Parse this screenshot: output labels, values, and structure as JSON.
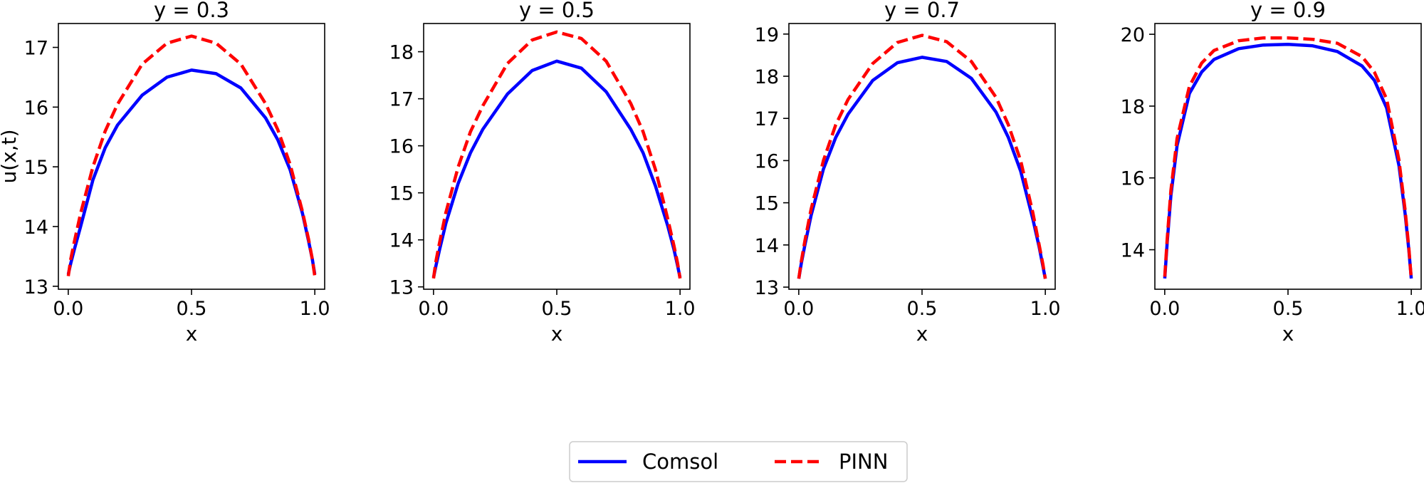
{
  "colors": {
    "comsol": "#0000ff",
    "pinn": "#ff0000",
    "axes": "#000000",
    "background": "#ffffff"
  },
  "legend": {
    "placement": "bottom-center",
    "entries": [
      {
        "name": "Comsol",
        "color": "#0000ff",
        "style": "solid"
      },
      {
        "name": "PINN",
        "color": "#ff0000",
        "style": "dashed"
      }
    ]
  },
  "chart_data": [
    {
      "type": "line",
      "title": "y = 0.3",
      "xlabel": "x",
      "ylabel": "u(x,t)",
      "xlim": [
        -0.04,
        1.04
      ],
      "ylim": [
        12.95,
        17.4
      ],
      "xticks": [
        0.0,
        0.5,
        1.0
      ],
      "xtick_labels": [
        "0.0",
        "0.5",
        "1.0"
      ],
      "yticks": [
        13,
        14,
        15,
        16,
        17
      ],
      "ytick_labels": [
        "13",
        "14",
        "15",
        "16",
        "17"
      ],
      "grid": false,
      "x": [
        0.0,
        0.01,
        0.025,
        0.05,
        0.1,
        0.15,
        0.2,
        0.3,
        0.4,
        0.5,
        0.6,
        0.7,
        0.8,
        0.85,
        0.9,
        0.95,
        0.975,
        0.99,
        1.0
      ],
      "series": [
        {
          "name": "Comsol",
          "values": [
            13.2,
            13.38,
            13.62,
            14.0,
            14.78,
            15.32,
            15.7,
            16.2,
            16.5,
            16.62,
            16.56,
            16.32,
            15.82,
            15.45,
            14.95,
            14.22,
            13.75,
            13.45,
            13.2
          ]
        },
        {
          "name": "PINN",
          "values": [
            13.17,
            13.45,
            13.75,
            14.22,
            15.0,
            15.6,
            16.05,
            16.72,
            17.07,
            17.19,
            17.07,
            16.72,
            16.06,
            15.62,
            15.04,
            14.25,
            13.78,
            13.45,
            13.17
          ]
        }
      ]
    },
    {
      "type": "line",
      "title": "y = 0.5",
      "xlabel": "x",
      "ylabel": "",
      "xlim": [
        -0.04,
        1.04
      ],
      "ylim": [
        12.95,
        18.6
      ],
      "xticks": [
        0.0,
        0.5,
        1.0
      ],
      "xtick_labels": [
        "0.0",
        "0.5",
        "1.0"
      ],
      "yticks": [
        13,
        14,
        15,
        16,
        17,
        18
      ],
      "ytick_labels": [
        "13",
        "14",
        "15",
        "16",
        "17",
        "18"
      ],
      "grid": false,
      "x": [
        0.0,
        0.01,
        0.025,
        0.05,
        0.1,
        0.15,
        0.2,
        0.3,
        0.4,
        0.5,
        0.6,
        0.7,
        0.8,
        0.85,
        0.9,
        0.95,
        0.975,
        0.99,
        1.0
      ],
      "series": [
        {
          "name": "Comsol",
          "values": [
            13.2,
            13.45,
            13.8,
            14.35,
            15.2,
            15.85,
            16.35,
            17.1,
            17.6,
            17.8,
            17.65,
            17.15,
            16.35,
            15.85,
            15.15,
            14.3,
            13.8,
            13.45,
            13.2
          ]
        },
        {
          "name": "PINN",
          "values": [
            13.18,
            13.55,
            13.95,
            14.58,
            15.55,
            16.3,
            16.85,
            17.75,
            18.25,
            18.42,
            18.28,
            17.8,
            16.9,
            16.3,
            15.5,
            14.45,
            13.88,
            13.5,
            13.18
          ]
        }
      ]
    },
    {
      "type": "line",
      "title": "y = 0.7",
      "xlabel": "x",
      "ylabel": "",
      "xlim": [
        -0.04,
        1.04
      ],
      "ylim": [
        12.95,
        19.25
      ],
      "xticks": [
        0.0,
        0.5,
        1.0
      ],
      "xtick_labels": [
        "0.0",
        "0.5",
        "1.0"
      ],
      "yticks": [
        13,
        14,
        15,
        16,
        17,
        18,
        19
      ],
      "ytick_labels": [
        "13",
        "14",
        "15",
        "16",
        "17",
        "18",
        "19"
      ],
      "grid": false,
      "x": [
        0.0,
        0.01,
        0.025,
        0.05,
        0.1,
        0.15,
        0.2,
        0.3,
        0.4,
        0.5,
        0.6,
        0.7,
        0.8,
        0.85,
        0.9,
        0.95,
        0.975,
        0.99,
        1.0
      ],
      "series": [
        {
          "name": "Comsol",
          "values": [
            13.2,
            13.55,
            14.0,
            14.7,
            15.8,
            16.55,
            17.1,
            17.9,
            18.32,
            18.45,
            18.35,
            17.95,
            17.15,
            16.55,
            15.75,
            14.6,
            13.95,
            13.5,
            13.2
          ]
        },
        {
          "name": "PINN",
          "values": [
            13.2,
            13.6,
            14.1,
            14.85,
            16.0,
            16.85,
            17.45,
            18.3,
            18.8,
            18.97,
            18.82,
            18.35,
            17.5,
            16.85,
            16.0,
            14.75,
            14.0,
            13.55,
            13.2
          ]
        }
      ]
    },
    {
      "type": "line",
      "title": "y = 0.9",
      "xlabel": "x",
      "ylabel": "",
      "xlim": [
        -0.04,
        1.04
      ],
      "ylim": [
        12.9,
        20.3
      ],
      "xticks": [
        0.0,
        0.5,
        1.0
      ],
      "xtick_labels": [
        "0.0",
        "0.5",
        "1.0"
      ],
      "yticks": [
        14,
        16,
        18,
        20
      ],
      "ytick_labels": [
        "14",
        "16",
        "18",
        "20"
      ],
      "grid": false,
      "x": [
        0.0,
        0.01,
        0.025,
        0.05,
        0.1,
        0.15,
        0.2,
        0.3,
        0.4,
        0.5,
        0.6,
        0.7,
        0.8,
        0.85,
        0.9,
        0.95,
        0.975,
        0.99,
        1.0
      ],
      "series": [
        {
          "name": "Comsol",
          "values": [
            13.2,
            14.2,
            15.5,
            16.9,
            18.35,
            18.95,
            19.3,
            19.6,
            19.7,
            19.72,
            19.68,
            19.52,
            19.12,
            18.72,
            17.95,
            16.35,
            15.0,
            14.0,
            13.2
          ]
        },
        {
          "name": "PINN",
          "values": [
            13.25,
            14.3,
            15.65,
            17.1,
            18.55,
            19.2,
            19.55,
            19.82,
            19.9,
            19.9,
            19.86,
            19.75,
            19.38,
            18.95,
            18.2,
            16.5,
            15.1,
            14.05,
            13.2
          ]
        }
      ]
    }
  ]
}
